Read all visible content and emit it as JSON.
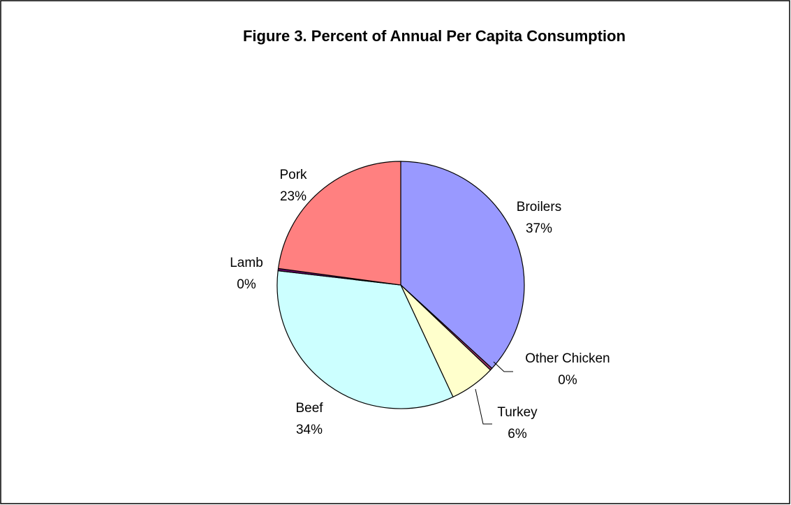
{
  "chart_data": {
    "type": "pie",
    "title": "Figure 3. Percent of Annual Per Capita Consumption",
    "categories": [
      "Broilers",
      "Other Chicken",
      "Turkey",
      "Beef",
      "Lamb",
      "Pork"
    ],
    "values": [
      37,
      0.3,
      6,
      34,
      0.3,
      23
    ],
    "value_labels": [
      "37%",
      "0%",
      "6%",
      "34%",
      "0%",
      "23%"
    ],
    "colors": [
      "#9999ff",
      "#993366",
      "#ffffcc",
      "#ccffff",
      "#660066",
      "#ff8080"
    ]
  }
}
